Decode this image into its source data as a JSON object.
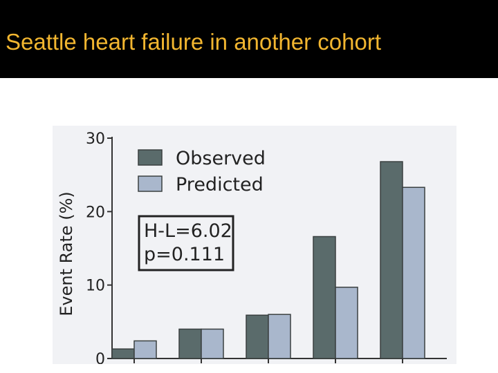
{
  "slide": {
    "title": "Seattle heart failure in another cohort"
  },
  "colors": {
    "title_bar": "#000000",
    "title_text": "#f2b630",
    "observed": "#5a6b6b",
    "predicted": "#a9b7cc"
  },
  "chart_data": {
    "type": "bar",
    "title": "",
    "xlabel": "",
    "ylabel": "Event Rate (%)",
    "ylim": [
      0,
      30
    ],
    "yticks": [
      0,
      10,
      20,
      30
    ],
    "categories": [
      "",
      "",
      "",
      "",
      ""
    ],
    "series": [
      {
        "name": "Observed",
        "values": [
          1.3,
          4.0,
          5.9,
          16.6,
          26.8
        ]
      },
      {
        "name": "Predicted",
        "values": [
          2.4,
          4.0,
          6.0,
          9.7,
          23.3
        ]
      }
    ],
    "legend_position": "top-left",
    "annotation": [
      "H-L=6.02",
      "p=0.111"
    ],
    "grid": false
  }
}
